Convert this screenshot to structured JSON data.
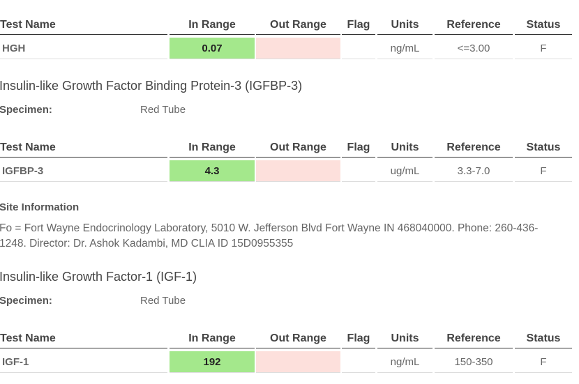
{
  "blocks": [
    {
      "table": {
        "headers": [
          "Test Name",
          "In Range",
          "Out Range",
          "Flag",
          "Units",
          "Reference",
          "Status"
        ],
        "row": {
          "test_name": "HGH",
          "in_range": "0.07",
          "units": "ng/mL",
          "reference": "<=3.00",
          "status": "F"
        }
      }
    },
    {
      "heading": "Insulin-like Growth Factor Binding Protein-3 (IGFBP-3)",
      "specimen_label": "Specimen:",
      "specimen": "Red Tube",
      "table": {
        "headers": [
          "Test Name",
          "In Range",
          "Out Range",
          "Flag",
          "Units",
          "Reference",
          "Status"
        ],
        "row": {
          "test_name": "IGFBP-3",
          "in_range": "4.3",
          "units": "ug/mL",
          "reference": "3.3-7.0",
          "status": "F"
        }
      }
    },
    {
      "site_title": "Site Information",
      "site_text": "Fo = Fort Wayne Endocrinology Laboratory, 5010 W. Jefferson Blvd Fort Wayne IN 468040000. Phone: 260-436-1248. Director: Dr. Ashok Kadambi, MD CLIA ID 15D0955355"
    },
    {
      "heading": "Insulin-like Growth Factor-1 (IGF-1)",
      "specimen_label": "Specimen:",
      "specimen": "Red Tube",
      "table": {
        "headers": [
          "Test Name",
          "In Range",
          "Out Range",
          "Flag",
          "Units",
          "Reference",
          "Status"
        ],
        "row": {
          "test_name": "IGF-1",
          "in_range": "192",
          "units": "ng/mL",
          "reference": "150-350",
          "status": "F"
        }
      }
    }
  ]
}
